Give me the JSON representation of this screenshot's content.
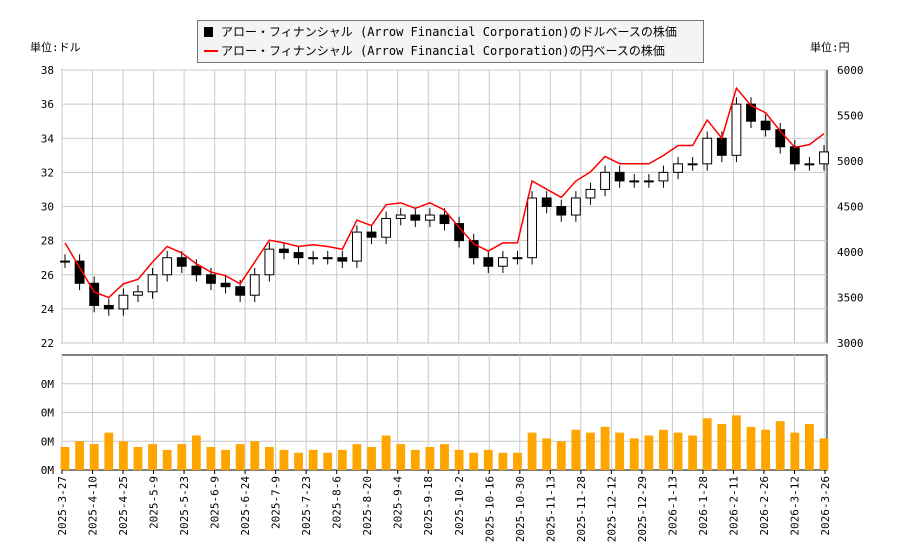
{
  "chart_data": {
    "type": "candlestick+line+bar",
    "legend": {
      "placement": "top",
      "entries": [
        {
          "label": "アロー・フィナンシャル (Arrow Financial Corporation)のドルベースの株価",
          "color": "#000000"
        },
        {
          "label": "アロー・フィナンシャル (Arrow Financial Corporation)の円ベースの株価",
          "color": "#ff0000"
        }
      ]
    },
    "left_unit": "単位:ドル",
    "right_unit": "単位:円",
    "y_left": {
      "range": [
        22,
        38
      ],
      "ticks": [
        "22",
        "24",
        "26",
        "28",
        "30",
        "32",
        "34",
        "36",
        "38"
      ]
    },
    "y_right": {
      "range": [
        3000,
        6000
      ],
      "ticks": [
        "3000",
        "3500",
        "4000",
        "4500",
        "5000",
        "5500",
        "6000"
      ]
    },
    "volume_axis": {
      "range": [
        0,
        0.4
      ],
      "ticks": [
        "0M",
        "0M",
        "0M",
        "0M"
      ]
    },
    "x_tick_labels": [
      "2025-3-27",
      "2025-4-10",
      "2025-4-25",
      "2025-5-9",
      "2025-5-23",
      "2025-6-9",
      "2025-6-24",
      "2025-7-9",
      "2025-7-23",
      "2025-8-6",
      "2025-8-20",
      "2025-9-4",
      "2025-9-18",
      "2025-10-2",
      "2025-10-16",
      "2025-10-30",
      "2025-11-13",
      "2025-11-28",
      "2025-12-12",
      "2025-12-29",
      "2026-1-13",
      "2026-1-28",
      "2026-2-11",
      "2026-2-26",
      "2026-3-12",
      "2026-3-26"
    ],
    "grid": true,
    "usd_close_weekly": [
      26.8,
      25.5,
      24.2,
      24.0,
      24.8,
      25.0,
      26.0,
      27.0,
      26.5,
      26.0,
      25.5,
      25.3,
      24.8,
      26.0,
      27.5,
      27.3,
      27.0,
      27.0,
      27.0,
      26.8,
      28.5,
      28.2,
      29.3,
      29.5,
      29.2,
      29.5,
      29.0,
      28.0,
      27.0,
      26.5,
      27.0,
      27.0,
      30.5,
      30.0,
      29.5,
      30.5,
      31.0,
      32.0,
      31.5,
      31.5,
      31.5,
      32.0,
      32.5,
      32.5,
      34.0,
      33.0,
      36.0,
      35.0,
      34.5,
      33.5,
      32.5,
      32.5,
      33.2
    ],
    "jpy_close_weekly": [
      4100,
      3830,
      3560,
      3500,
      3650,
      3700,
      3890,
      4060,
      3990,
      3870,
      3780,
      3740,
      3650,
      3890,
      4130,
      4100,
      4060,
      4080,
      4060,
      4030,
      4350,
      4290,
      4520,
      4540,
      4480,
      4540,
      4460,
      4270,
      4090,
      4010,
      4100,
      4100,
      4780,
      4690,
      4600,
      4780,
      4880,
      5050,
      4970,
      4970,
      4970,
      5060,
      5170,
      5170,
      5450,
      5250,
      5800,
      5610,
      5530,
      5330,
      5150,
      5180,
      5300
    ],
    "volume_weekly_millions": [
      0.08,
      0.1,
      0.09,
      0.13,
      0.1,
      0.08,
      0.09,
      0.07,
      0.09,
      0.12,
      0.08,
      0.07,
      0.09,
      0.1,
      0.08,
      0.07,
      0.06,
      0.07,
      0.06,
      0.07,
      0.09,
      0.08,
      0.12,
      0.09,
      0.07,
      0.08,
      0.09,
      0.07,
      0.06,
      0.07,
      0.06,
      0.06,
      0.13,
      0.11,
      0.1,
      0.14,
      0.13,
      0.15,
      0.13,
      0.11,
      0.12,
      0.14,
      0.13,
      0.12,
      0.18,
      0.16,
      0.19,
      0.15,
      0.14,
      0.17,
      0.13,
      0.16,
      0.11
    ],
    "colors": {
      "up": "#ffffff",
      "down": "#000000",
      "yen_line": "#ff0000",
      "volume": "#ffa500",
      "grid": "#c8c8c8"
    }
  }
}
